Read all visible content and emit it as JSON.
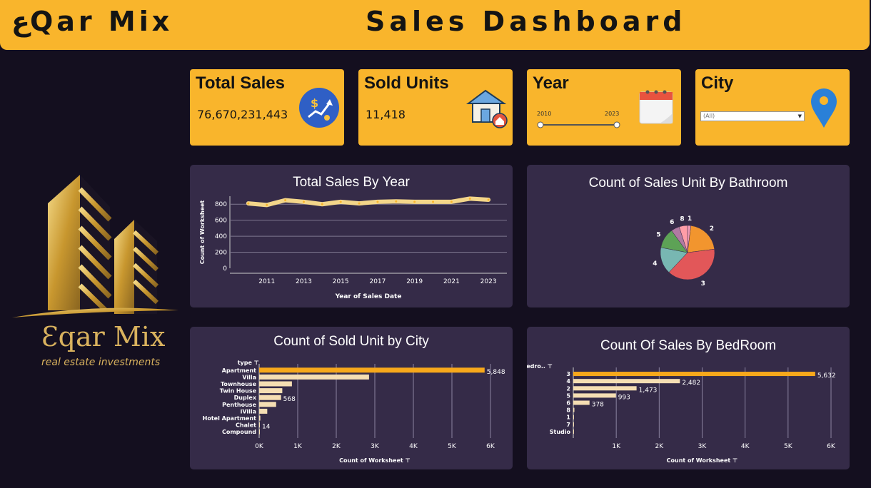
{
  "header": {
    "brand": "عQar Mix",
    "title": "Sales Dashboard"
  },
  "kpis": {
    "total_sales": {
      "label": "Total Sales",
      "value": "76,670,231,443",
      "icon": "money-growth-icon"
    },
    "sold_units": {
      "label": "Sold Units",
      "value": "11,418",
      "icon": "house-icon"
    },
    "year": {
      "label": "Year",
      "from": "2010",
      "to": "2023",
      "icon": "calendar-icon"
    },
    "city": {
      "label": "City",
      "selected": "(All)",
      "icon": "location-pin-icon"
    }
  },
  "logo": {
    "name": "Ɛqar Mix",
    "tagline": "real estate investments"
  },
  "colors": {
    "accent": "#f9b52c",
    "panel": "#352b48",
    "bg": "#140f1f",
    "bar_highlight": "#f7a81b",
    "bar_normal": "#f5deb3"
  },
  "chart_data": [
    {
      "id": "sales_by_year",
      "type": "line",
      "title": "Total Sales By Year",
      "xlabel": "Year of Sales Date",
      "ylabel": "Count of Worksheet",
      "x": [
        2010,
        2011,
        2012,
        2013,
        2014,
        2015,
        2016,
        2017,
        2018,
        2019,
        2020,
        2021,
        2022,
        2023
      ],
      "values": [
        810,
        790,
        850,
        830,
        800,
        830,
        810,
        830,
        835,
        830,
        830,
        830,
        870,
        855
      ],
      "xticks": [
        "2011",
        "2013",
        "2015",
        "2017",
        "2019",
        "2021",
        "2023"
      ],
      "yticks": [
        "0",
        "200",
        "400",
        "600",
        "800"
      ],
      "ylim": [
        0,
        900
      ]
    },
    {
      "id": "sales_by_bathroom",
      "type": "pie",
      "title": "Count of Sales Unit By Bathroom",
      "labels": [
        "1",
        "2",
        "3",
        "4",
        "5",
        "6",
        "8"
      ],
      "values": [
        2,
        21,
        39,
        16,
        12,
        5,
        5
      ],
      "colors": [
        "#f29bb5",
        "#f2952e",
        "#e25759",
        "#78b7b2",
        "#5da256",
        "#b07aa1",
        "#ff9da7"
      ]
    },
    {
      "id": "sold_unit_by_city",
      "type": "bar",
      "orientation": "horizontal",
      "title": "Count of Sold Unit by City",
      "category_header": "type",
      "xlabel": "Count of Worksheet",
      "categories": [
        "Apartment",
        "Villa",
        "Townhouse",
        "Twin House",
        "Duplex",
        "Penthouse",
        "iVilla",
        "Hotel Apartment",
        "Chalet",
        "Compound"
      ],
      "values": [
        5848,
        2850,
        850,
        600,
        568,
        440,
        210,
        30,
        14,
        5
      ],
      "labels": [
        "5,848",
        "",
        "",
        "",
        "568",
        "",
        "",
        "",
        "14",
        ""
      ],
      "xticks": [
        "0K",
        "1K",
        "2K",
        "3K",
        "4K",
        "5K",
        "6K"
      ],
      "xlim": [
        0,
        6000
      ]
    },
    {
      "id": "sales_by_bedroom",
      "type": "bar",
      "orientation": "horizontal",
      "title": "Count Of Sales By BedRoom",
      "category_header": "bedro..",
      "xlabel": "Count of Worksheet",
      "categories": [
        "3",
        "4",
        "2",
        "5",
        "6",
        "8",
        "1",
        "7",
        "Studio"
      ],
      "values": [
        5632,
        2482,
        1473,
        993,
        378,
        25,
        15,
        8,
        5
      ],
      "labels": [
        "5,632",
        "2,482",
        "1,473",
        "993",
        "378",
        "",
        "",
        "",
        ""
      ],
      "xticks": [
        "1K",
        "2K",
        "3K",
        "4K",
        "5K",
        "6K"
      ],
      "xlim": [
        0,
        6000
      ]
    }
  ]
}
